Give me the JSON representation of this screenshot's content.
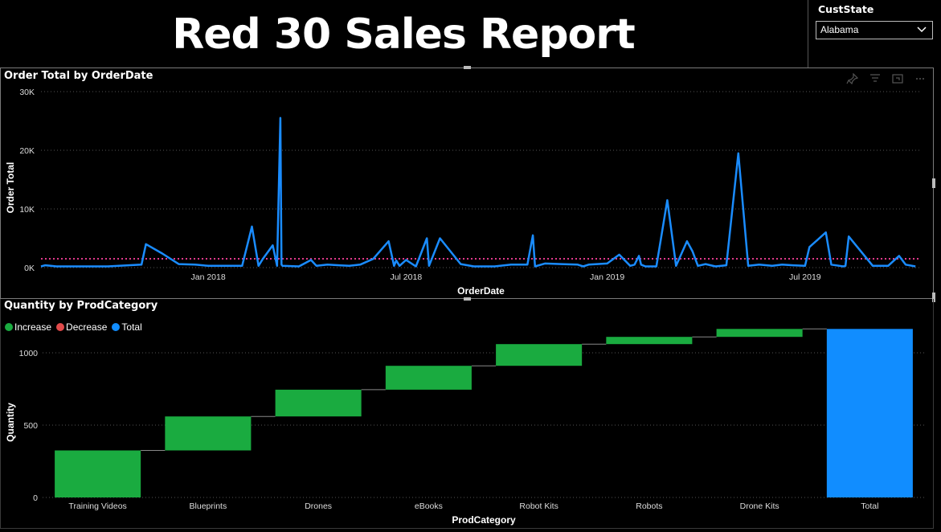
{
  "report": {
    "title": "Red 30 Sales Report"
  },
  "slicer": {
    "label": "CustState",
    "selected": "Alabama"
  },
  "colors": {
    "line": "#1a8cff",
    "reference": "#e03a8c",
    "increase": "#1aab40",
    "decrease": "#e04a4a",
    "total": "#118dff",
    "grid": "#555555",
    "text": "#dddddd"
  },
  "line_chart": {
    "title": "Order Total by OrderDate",
    "chart_data": {
      "type": "line",
      "title": "Order Total by OrderDate",
      "xlabel": "OrderDate",
      "ylabel": "Order Total",
      "ylim": [
        0,
        30000
      ],
      "yticks": [
        0,
        10000,
        20000,
        30000
      ],
      "ytick_labels": [
        "0K",
        "10K",
        "20K",
        "30K"
      ],
      "xticks": [
        "Jan 2018",
        "Jul 2018",
        "Jan 2019",
        "Jul 2019"
      ],
      "xlim": [
        "2017-08-01",
        "2019-10-15"
      ],
      "reference_line": 1500,
      "x": [
        "2017-08-01",
        "2017-08-05",
        "2017-08-10",
        "2017-08-15",
        "2017-09-01",
        "2017-10-01",
        "2017-11-01",
        "2017-11-05",
        "2017-11-20",
        "2017-12-05",
        "2017-12-20",
        "2018-01-01",
        "2018-02-01",
        "2018-02-10",
        "2018-02-16",
        "2018-02-20",
        "2018-03-01",
        "2018-03-05",
        "2018-03-08",
        "2018-03-09",
        "2018-03-10",
        "2018-03-25",
        "2018-04-05",
        "2018-04-10",
        "2018-04-20",
        "2018-05-01",
        "2018-05-10",
        "2018-05-20",
        "2018-06-01",
        "2018-06-15",
        "2018-06-20",
        "2018-06-22",
        "2018-06-25",
        "2018-07-01",
        "2018-07-10",
        "2018-07-20",
        "2018-07-22",
        "2018-08-01",
        "2018-08-20",
        "2018-09-01",
        "2018-09-20",
        "2018-10-05",
        "2018-10-20",
        "2018-10-25",
        "2018-10-27",
        "2018-11-05",
        "2018-11-20",
        "2018-12-05",
        "2018-12-10",
        "2018-12-15",
        "2019-01-01",
        "2019-01-12",
        "2019-01-22",
        "2019-01-26",
        "2019-01-30",
        "2019-02-01",
        "2019-02-05",
        "2019-02-15",
        "2019-02-25",
        "2019-03-05",
        "2019-03-15",
        "2019-03-20",
        "2019-03-25",
        "2019-04-01",
        "2019-04-10",
        "2019-04-20",
        "2019-05-01",
        "2019-05-10",
        "2019-05-20",
        "2019-06-01",
        "2019-06-10",
        "2019-06-20",
        "2019-07-01",
        "2019-07-05",
        "2019-07-20",
        "2019-07-25",
        "2019-08-05",
        "2019-08-07",
        "2019-08-10",
        "2019-09-01",
        "2019-09-15",
        "2019-09-25",
        "2019-10-01",
        "2019-10-10"
      ],
      "y": [
        200,
        400,
        300,
        200,
        200,
        200,
        500,
        4000,
        2400,
        600,
        500,
        300,
        300,
        7000,
        300,
        1500,
        3800,
        300,
        25500,
        500,
        300,
        200,
        1300,
        300,
        500,
        400,
        300,
        500,
        1500,
        4500,
        300,
        1200,
        300,
        1300,
        200,
        5000,
        300,
        5000,
        600,
        200,
        200,
        500,
        500,
        5500,
        200,
        700,
        600,
        500,
        200,
        500,
        700,
        2200,
        300,
        500,
        2000,
        500,
        200,
        200,
        11500,
        300,
        4500,
        2800,
        300,
        600,
        200,
        400,
        19500,
        300,
        500,
        300,
        500,
        400,
        300,
        3500,
        6000,
        500,
        200,
        300,
        5300,
        300,
        300,
        2000,
        500,
        200
      ]
    }
  },
  "waterfall_chart": {
    "title": "Quantity by ProdCategory",
    "legend": [
      {
        "label": "Increase",
        "color": "#1aab40"
      },
      {
        "label": "Decrease",
        "color": "#e04a4a"
      },
      {
        "label": "Total",
        "color": "#118dff"
      }
    ],
    "chart_data": {
      "type": "bar",
      "subtype": "waterfall",
      "title": "Quantity by ProdCategory",
      "xlabel": "ProdCategory",
      "ylabel": "Quantity",
      "ylim": [
        0,
        1150
      ],
      "yticks": [
        0,
        500,
        1000
      ],
      "categories": [
        "Training Videos",
        "Blueprints",
        "Drones",
        "eBooks",
        "Robot Kits",
        "Robots",
        "Drone Kits",
        "Total"
      ],
      "values": [
        325,
        235,
        185,
        165,
        150,
        50,
        55,
        1165
      ],
      "legend_position": "top-left"
    }
  }
}
